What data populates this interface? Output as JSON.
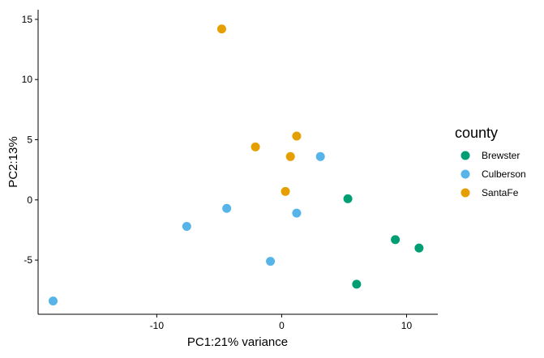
{
  "chart_data": {
    "type": "scatter",
    "title": "",
    "xlabel": "PC1:21% variance",
    "ylabel": "PC2:13%",
    "xlim": [
      -19.5,
      12.5
    ],
    "ylim": [
      -9.5,
      15.8
    ],
    "x_ticks": [
      -10,
      0,
      10
    ],
    "y_ticks": [
      -5,
      0,
      5,
      10,
      15
    ],
    "x_tick_labels": [
      "-10",
      "0",
      "10"
    ],
    "y_tick_labels": [
      "-5",
      "0",
      "5",
      "10",
      "15"
    ],
    "grid": false,
    "legend": {
      "title": "county",
      "placement": "right"
    },
    "series": [
      {
        "name": "Brewster",
        "color": "#009E73",
        "points": [
          [
            5.3,
            0.1
          ],
          [
            9.1,
            -3.3
          ],
          [
            11.0,
            -4.0
          ],
          [
            6.0,
            -7.0
          ]
        ]
      },
      {
        "name": "Culberson",
        "color": "#56B4E9",
        "points": [
          [
            3.1,
            3.6
          ],
          [
            1.2,
            -1.1
          ],
          [
            -4.4,
            -0.7
          ],
          [
            -7.6,
            -2.2
          ],
          [
            -0.9,
            -5.1
          ],
          [
            -18.3,
            -8.4
          ]
        ]
      },
      {
        "name": "SantaFe",
        "color": "#E69F00",
        "points": [
          [
            -4.8,
            14.2
          ],
          [
            1.2,
            5.3
          ],
          [
            -2.1,
            4.4
          ],
          [
            0.7,
            3.6
          ],
          [
            0.3,
            0.7
          ]
        ]
      }
    ]
  }
}
